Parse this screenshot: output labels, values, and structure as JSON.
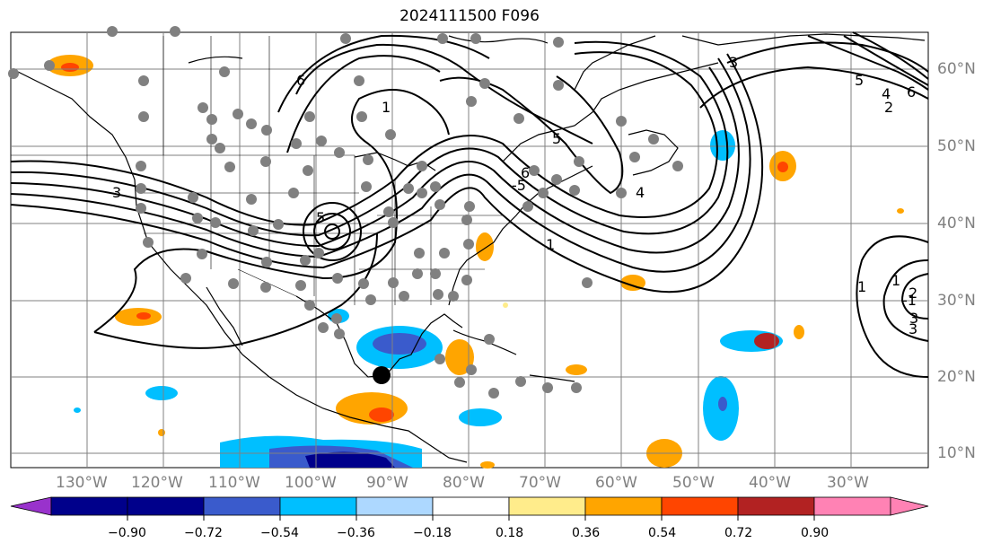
{
  "title": "2024111500 F096",
  "longitude_labels": [
    "130°W",
    "120°W",
    "110°W",
    "100°W",
    "90°W",
    "80°W",
    "70°W",
    "60°W",
    "50°W",
    "40°W",
    "30°W"
  ],
  "latitude_labels": [
    "60°N",
    "50°N",
    "40°N",
    "30°N",
    "20°N",
    "10°N"
  ],
  "contour_labels": [
    "3",
    "5",
    "1",
    "6",
    "-5",
    "1",
    "5",
    "6",
    "4",
    "3",
    "1",
    "-1",
    "5",
    "4",
    "6",
    "2",
    "1",
    "2",
    "3",
    "3"
  ],
  "colorbar": {
    "tick_labels": [
      "−0.90",
      "−0.72",
      "−0.54",
      "−0.36",
      "−0.18",
      "0.18",
      "0.36",
      "0.54",
      "0.72",
      "0.90"
    ],
    "colors": [
      "#9932cc",
      "#00008b",
      "#3a5bcc",
      "#00bfff",
      "#add8ff",
      "#ffffff",
      "#ffec8b",
      "#ffa500",
      "#ff4500",
      "#b22222",
      "#ff82b4"
    ]
  },
  "colors": {
    "land_outline": "#000000",
    "grid": "#808080",
    "station": "#808080",
    "contour": "#000000"
  }
}
